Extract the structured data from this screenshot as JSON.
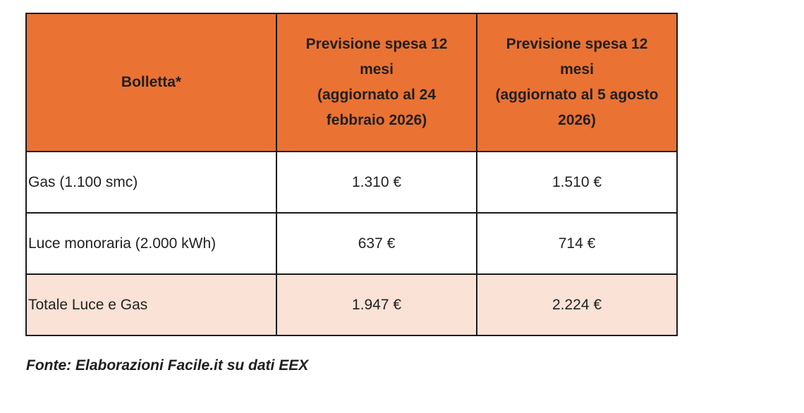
{
  "table": {
    "headers": {
      "col1": "Bolletta*",
      "col2": {
        "line1": "Previsione spesa 12",
        "line2": "mesi",
        "line3": "(aggiornato al 24",
        "line4": "febbraio 2026)"
      },
      "col3": {
        "line1": "Previsione spesa 12",
        "line2": "mesi",
        "line3": "(aggiornato al 5 agosto",
        "line4": "2026)"
      }
    },
    "rows": [
      {
        "label": "Gas (1.100 smc)",
        "feb": "1.310 €",
        "aug": "1.510 €"
      },
      {
        "label": "Luce monoraria (2.000 kWh)",
        "feb": "637 €",
        "aug": "714 €"
      },
      {
        "label": "Totale Luce e Gas",
        "feb": "1.947 €",
        "aug": "2.224 €"
      }
    ]
  },
  "source": "Fonte: Elaborazioni Facile.it su dati EEX",
  "colors": {
    "header_bg": "#ea7233",
    "total_row_bg": "#fbe2d6",
    "border": "#1a1a1a"
  }
}
